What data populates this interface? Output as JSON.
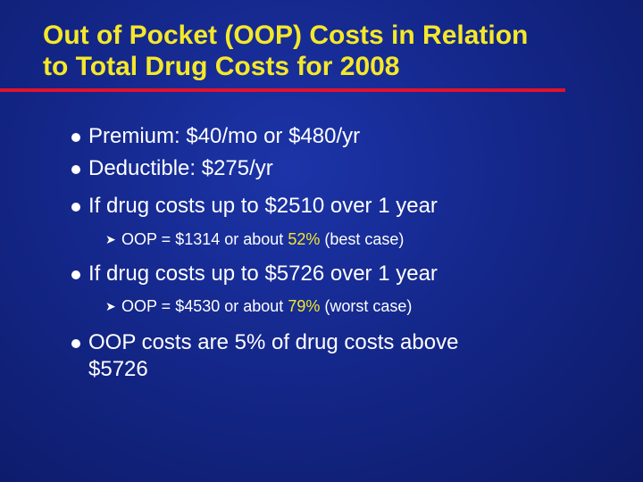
{
  "slide": {
    "title_line1": "Out of Pocket (OOP) Costs in Relation",
    "title_line2": "to Total Drug Costs for 2008",
    "bullets": [
      {
        "text": "Premium: $40/mo or $480/yr"
      },
      {
        "text": "Deductible: $275/yr"
      },
      {
        "text": "If drug costs up to $2510 over 1 year"
      },
      {
        "pre": "OOP = $1314 or about ",
        "highlight": "52%",
        "post": " (best case)"
      },
      {
        "text": "If drug costs up to $5726 over 1 year"
      },
      {
        "pre": "OOP = $4530 or about ",
        "highlight": "79%",
        "post": " (worst case)"
      },
      {
        "line1": "OOP costs are 5% of drug costs above",
        "line2": "$5726"
      }
    ]
  },
  "colors": {
    "background": "#14278a",
    "title": "#f5e829",
    "rule": "#e3122b",
    "highlight": "#f5e829",
    "text": "#ffffff"
  },
  "icons": {
    "level1": "round-bullet-icon",
    "level2": "arrow-bullet-icon"
  }
}
